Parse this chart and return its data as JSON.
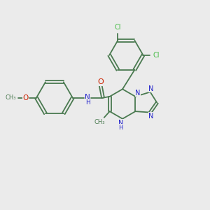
{
  "bg_color": "#ebebeb",
  "bond_color": "#4a7a50",
  "N_color": "#2222cc",
  "O_color": "#cc2200",
  "Cl_color": "#44bb44",
  "figsize": [
    3.0,
    3.0
  ],
  "dpi": 100,
  "bond_lw": 1.3,
  "font_size": 7.0,
  "xlim": [
    0,
    10
  ],
  "ylim": [
    0,
    10
  ]
}
